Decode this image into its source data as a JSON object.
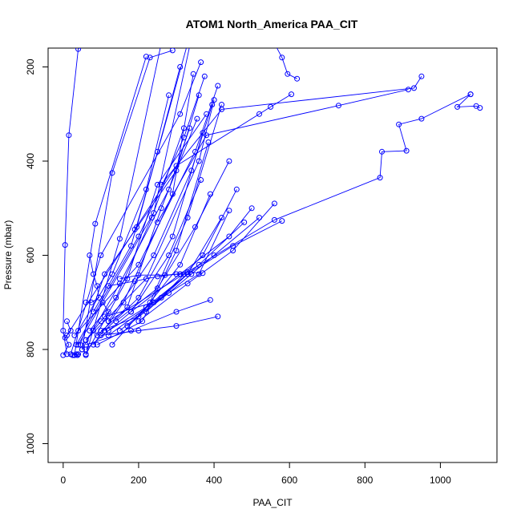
{
  "chart_data": {
    "type": "scatter",
    "title": "ATOM1 North_America PAA_CIT",
    "xlabel": "PAA_CIT",
    "ylabel": "Pressure (mbar)",
    "xlim": [
      -40,
      1150
    ],
    "ylim": [
      1040,
      160
    ],
    "y_reversed": true,
    "x_ticks": [
      0,
      200,
      400,
      600,
      800,
      1000
    ],
    "y_ticks": [
      200,
      400,
      600,
      800,
      1000
    ],
    "grid": false,
    "legend": "none",
    "color": "#0000ff",
    "marker": "open-circle",
    "series": [
      {
        "points": [
          [
            135,
            108
          ],
          [
            40,
            162
          ],
          [
            15,
            345
          ],
          [
            5,
            578
          ],
          [
            0,
            760
          ],
          [
            10,
            810
          ]
        ]
      },
      {
        "points": [
          [
            220,
            178
          ],
          [
            85,
            533
          ],
          [
            30,
            812
          ]
        ]
      },
      {
        "points": [
          [
            260,
            150
          ],
          [
            150,
            565
          ],
          [
            60,
            812
          ]
        ]
      },
      {
        "points": [
          [
            330,
            150
          ],
          [
            195,
            540
          ],
          [
            10,
            770
          ]
        ]
      },
      {
        "points": [
          [
            345,
            120
          ],
          [
            240,
            510
          ],
          [
            40,
            790
          ]
        ]
      },
      {
        "points": [
          [
            290,
            165
          ],
          [
            230,
            180
          ],
          [
            130,
            425
          ],
          [
            50,
            800
          ]
        ]
      },
      {
        "points": [
          [
            365,
            190
          ],
          [
            310,
            300
          ],
          [
            100,
            600
          ],
          [
            20,
            810
          ]
        ]
      },
      {
        "points": [
          [
            375,
            220
          ],
          [
            320,
            350
          ],
          [
            200,
            560
          ],
          [
            35,
            790
          ]
        ]
      },
      {
        "points": [
          [
            360,
            260
          ],
          [
            300,
            420
          ],
          [
            110,
            640
          ],
          [
            45,
            790
          ]
        ]
      },
      {
        "points": [
          [
            380,
            300
          ],
          [
            250,
            450
          ],
          [
            170,
            650
          ],
          [
            60,
            810
          ]
        ]
      },
      {
        "points": [
          [
            335,
            330
          ],
          [
            280,
            460
          ],
          [
            150,
            660
          ],
          [
            50,
            800
          ]
        ]
      },
      {
        "points": [
          [
            410,
            240
          ],
          [
            350,
            380
          ],
          [
            200,
            620
          ],
          [
            30,
            770
          ]
        ]
      },
      {
        "points": [
          [
            400,
            270
          ],
          [
            360,
            400
          ],
          [
            220,
            650
          ],
          [
            60,
            780
          ]
        ]
      },
      {
        "points": [
          [
            310,
            200
          ],
          [
            250,
            380
          ],
          [
            180,
            580
          ],
          [
            80,
            720
          ]
        ]
      },
      {
        "points": [
          [
            395,
            280
          ],
          [
            340,
            420
          ],
          [
            240,
            600
          ],
          [
            120,
            740
          ]
        ]
      },
      {
        "points": [
          [
            345,
            215
          ],
          [
            290,
            470
          ],
          [
            160,
            700
          ],
          [
            80,
            790
          ]
        ]
      },
      {
        "points": [
          [
            320,
            330
          ],
          [
            235,
            520
          ],
          [
            140,
            690
          ],
          [
            70,
            760
          ]
        ]
      },
      {
        "points": [
          [
            280,
            260
          ],
          [
            220,
            460
          ],
          [
            130,
            640
          ],
          [
            40,
            760
          ]
        ]
      },
      {
        "points": [
          [
            355,
            310
          ],
          [
            260,
            500
          ],
          [
            170,
            710
          ],
          [
            90,
            770
          ]
        ]
      },
      {
        "points": [
          [
            370,
            340
          ],
          [
            290,
            560
          ],
          [
            200,
            690
          ],
          [
            110,
            760
          ]
        ]
      },
      {
        "points": [
          [
            420,
            280
          ],
          [
            330,
            520
          ],
          [
            230,
            700
          ],
          [
            130,
            790
          ]
        ]
      },
      {
        "points": [
          [
            385,
            360
          ],
          [
            300,
            590
          ],
          [
            210,
            740
          ],
          [
            90,
            790
          ]
        ]
      },
      {
        "points": [
          [
            365,
            440
          ],
          [
            280,
            600
          ],
          [
            180,
            720
          ],
          [
            60,
            800
          ]
        ]
      },
      {
        "points": [
          [
            440,
            400
          ],
          [
            350,
            540
          ],
          [
            250,
            670
          ],
          [
            140,
            740
          ]
        ]
      },
      {
        "points": [
          [
            390,
            470
          ],
          [
            310,
            620
          ],
          [
            200,
            730
          ],
          [
            100,
            760
          ]
        ]
      },
      {
        "points": [
          [
            460,
            460
          ],
          [
            370,
            600
          ],
          [
            260,
            690
          ],
          [
            150,
            760
          ]
        ]
      },
      {
        "points": [
          [
            420,
            520
          ],
          [
            330,
            640
          ],
          [
            220,
            710
          ],
          [
            120,
            760
          ]
        ]
      },
      {
        "points": [
          [
            480,
            530
          ],
          [
            360,
            620
          ],
          [
            240,
            700
          ],
          [
            110,
            730
          ]
        ]
      },
      {
        "points": [
          [
            500,
            500
          ],
          [
            440,
            560
          ],
          [
            310,
            640
          ],
          [
            180,
            720
          ]
        ]
      },
      {
        "points": [
          [
            520,
            520
          ],
          [
            400,
            600
          ],
          [
            280,
            680
          ],
          [
            170,
            750
          ]
        ]
      },
      {
        "points": [
          [
            560,
            490
          ],
          [
            450,
            590
          ],
          [
            330,
            660
          ],
          [
            200,
            740
          ]
        ]
      },
      {
        "points": [
          [
            580,
            527
          ],
          [
            450,
            580
          ],
          [
            330,
            640
          ],
          [
            220,
            720
          ]
        ]
      },
      {
        "points": [
          [
            440,
            505
          ],
          [
            360,
            640
          ],
          [
            240,
            700
          ],
          [
            120,
            770
          ]
        ]
      },
      {
        "points": [
          [
            410,
            730
          ],
          [
            300,
            750
          ],
          [
            200,
            760
          ],
          [
            100,
            770
          ]
        ]
      },
      {
        "points": [
          [
            390,
            695
          ],
          [
            300,
            720
          ],
          [
            180,
            760
          ],
          [
            60,
            790
          ]
        ]
      },
      {
        "points": [
          [
            560,
            150
          ],
          [
            580,
            180
          ],
          [
            595,
            215
          ],
          [
            620,
            225
          ]
        ]
      },
      {
        "points": [
          [
            605,
            258
          ],
          [
            550,
            285
          ],
          [
            520,
            300
          ],
          [
            300,
            410
          ],
          [
            190,
            545
          ]
        ]
      },
      {
        "points": [
          [
            950,
            220
          ],
          [
            930,
            245
          ],
          [
            420,
            290
          ],
          [
            260,
            450
          ]
        ]
      },
      {
        "points": [
          [
            915,
            248
          ],
          [
            730,
            282
          ],
          [
            380,
            345
          ],
          [
            250,
            530
          ]
        ]
      },
      {
        "points": [
          [
            1080,
            258
          ],
          [
            1045,
            285
          ],
          [
            1095,
            283
          ],
          [
            1105,
            287
          ]
        ]
      },
      {
        "points": [
          [
            1080,
            258
          ],
          [
            950,
            310
          ],
          [
            890,
            322
          ],
          [
            910,
            378
          ],
          [
            845,
            380
          ],
          [
            840,
            435
          ],
          [
            560,
            525
          ],
          [
            320,
            640
          ],
          [
            120,
            740
          ]
        ]
      },
      {
        "points": [
          [
            370,
            638
          ],
          [
            330,
            636
          ],
          [
            300,
            640
          ],
          [
            250,
            645
          ],
          [
            190,
            655
          ],
          [
            120,
            665
          ]
        ]
      },
      {
        "points": [
          [
            340,
            640
          ],
          [
            310,
            640
          ],
          [
            270,
            642
          ],
          [
            200,
            642
          ],
          [
            150,
            650
          ]
        ]
      },
      {
        "points": [
          [
            70,
            600
          ],
          [
            80,
            640
          ],
          [
            90,
            665
          ],
          [
            95,
            690
          ],
          [
            75,
            700
          ],
          [
            60,
            700
          ]
        ]
      },
      {
        "points": [
          [
            105,
            700
          ],
          [
            120,
            720
          ],
          [
            100,
            740
          ],
          [
            80,
            760
          ],
          [
            60,
            780
          ]
        ]
      },
      {
        "points": [
          [
            10,
            740
          ],
          [
            20,
            760
          ],
          [
            5,
            775
          ],
          [
            15,
            790
          ],
          [
            0,
            812
          ]
        ]
      },
      {
        "points": [
          [
            30,
            812
          ],
          [
            35,
            810
          ],
          [
            38,
            812
          ],
          [
            40,
            810
          ],
          [
            25,
            812
          ]
        ]
      }
    ]
  }
}
